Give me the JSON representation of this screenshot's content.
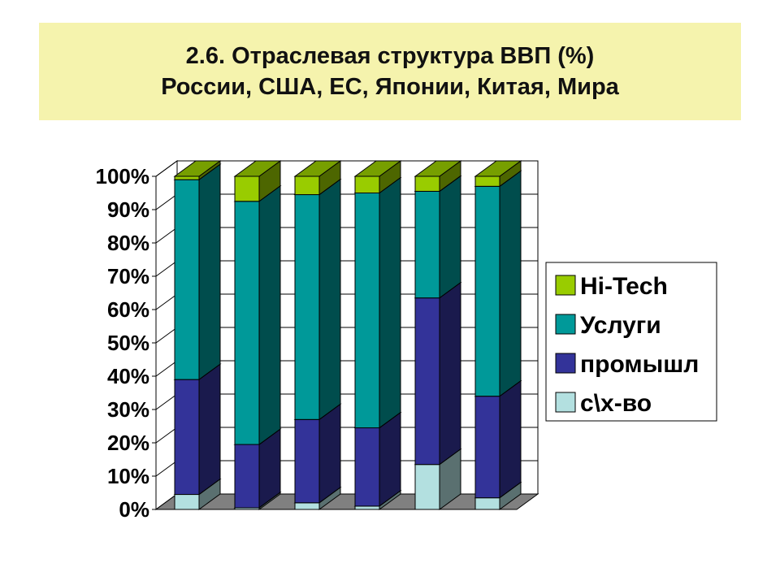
{
  "title": {
    "line1": "2.6. Отраслевая структура ВВП (%)",
    "line2": "России, США, ЕС, Японии, Китая, Мира"
  },
  "chart_data": {
    "type": "bar",
    "stacked": true,
    "three_d": true,
    "categories": [
      "",
      "",
      "",
      "",
      "",
      ""
    ],
    "y_ticks": [
      "0%",
      "10%",
      "20%",
      "30%",
      "40%",
      "50%",
      "60%",
      "70%",
      "80%",
      "90%",
      "100%"
    ],
    "ylim": [
      0,
      100
    ],
    "grid": true,
    "legend_position": "right",
    "series": [
      {
        "name": "c\\x-во",
        "values": [
          4.5,
          0.5,
          2,
          1,
          13.5,
          3.5
        ],
        "color": "#B3E0E0"
      },
      {
        "name": "промышл",
        "values": [
          34.5,
          19,
          25,
          23.5,
          50,
          30.5
        ],
        "color": "#333399"
      },
      {
        "name": "Услуги",
        "values": [
          60,
          73,
          67.5,
          70.5,
          32,
          63
        ],
        "color": "#009999"
      },
      {
        "name": "Hi-Tech",
        "values": [
          1,
          7.5,
          5.5,
          5,
          4.5,
          3
        ],
        "color": "#99CC00"
      }
    ]
  }
}
